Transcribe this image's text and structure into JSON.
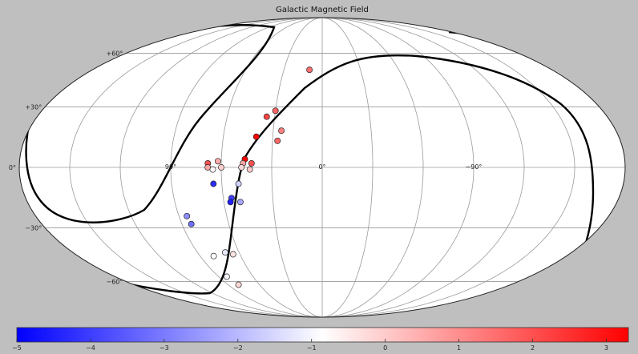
{
  "chart_data": {
    "type": "scatter",
    "projection": "mollweide",
    "title": "Galactic Magnetic Field",
    "latitude_labels": [
      "+60°",
      "+30°",
      "0°",
      "−30°",
      "−60°"
    ],
    "longitude_labels": [
      "90°",
      "0°",
      "−90°"
    ],
    "colorbar": {
      "min": -5,
      "max": 3.3,
      "ticks": [
        "−5",
        "−4",
        "−3",
        "−2",
        "−1",
        "0",
        "1",
        "2",
        "3"
      ],
      "tick_values": [
        -5,
        -4,
        -3,
        -2,
        -1,
        0,
        1,
        2,
        3
      ],
      "colormap": [
        "#0000ff",
        "#ffffff",
        "#ff0000"
      ]
    },
    "points": [
      {
        "lon": 10,
        "lat": 50,
        "value": 1.5
      },
      {
        "lon": 30,
        "lat": 28,
        "value": 1.7
      },
      {
        "lon": 35,
        "lat": 25,
        "value": 2.2
      },
      {
        "lon": 25,
        "lat": 18,
        "value": 1.2
      },
      {
        "lon": 40,
        "lat": 15,
        "value": 3.2
      },
      {
        "lon": 27,
        "lat": 13,
        "value": 1.6
      },
      {
        "lon": 46,
        "lat": 4,
        "value": 3.3
      },
      {
        "lon": 42,
        "lat": 2,
        "value": 2.0
      },
      {
        "lon": 47,
        "lat": 2,
        "value": 0.6
      },
      {
        "lon": 62,
        "lat": 3,
        "value": 0.5
      },
      {
        "lon": 68,
        "lat": 2,
        "value": 2.0
      },
      {
        "lon": 68,
        "lat": 0,
        "value": 0.6
      },
      {
        "lon": 60,
        "lat": 0,
        "value": -0.1
      },
      {
        "lon": 65,
        "lat": -1,
        "value": -0.7
      },
      {
        "lon": 48,
        "lat": 0,
        "value": -0.2
      },
      {
        "lon": 43,
        "lat": -1,
        "value": 0.0
      },
      {
        "lon": 65,
        "lat": -8,
        "value": -4.3
      },
      {
        "lon": 50,
        "lat": -8,
        "value": -1.6
      },
      {
        "lon": 55,
        "lat": -15,
        "value": -4.0
      },
      {
        "lon": 56,
        "lat": -17,
        "value": -4.5
      },
      {
        "lon": 50,
        "lat": -17,
        "value": -2.3
      },
      {
        "lon": 85,
        "lat": -24,
        "value": -2.7
      },
      {
        "lon": 84,
        "lat": -28,
        "value": -3.2
      },
      {
        "lon": 70,
        "lat": -43,
        "value": -1.2
      },
      {
        "lon": 65,
        "lat": -44,
        "value": -0.4
      },
      {
        "lon": 80,
        "lat": -45,
        "value": -0.8
      },
      {
        "lon": 83,
        "lat": -57,
        "value": -1.0
      },
      {
        "lon": 80,
        "lat": -62,
        "value": -0.2
      }
    ]
  }
}
